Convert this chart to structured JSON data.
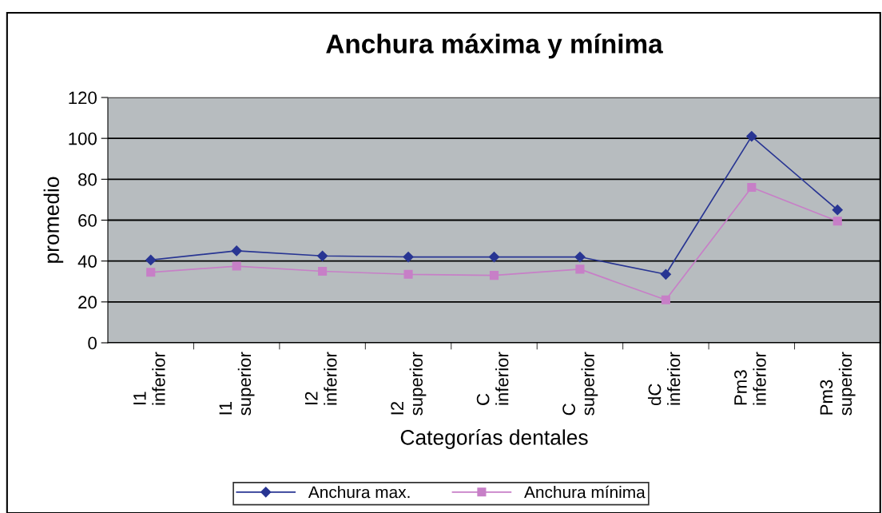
{
  "chart_data": {
    "type": "line",
    "title": "Anchura máxima y mínima",
    "xlabel": "Categorías dentales",
    "ylabel": "promedio",
    "categories": [
      "I1\ninferior",
      "I1\nsuperior",
      "I2\ninferior",
      "I2\nsuperior",
      "C\ninferior",
      "C\nsuperior",
      "dC\ninferior",
      "Pm3\ninferior",
      "Pm3\nsuperior"
    ],
    "series": [
      {
        "name": "Anchura max.",
        "color": "#283593",
        "marker": "diamond",
        "values": [
          40.5,
          45,
          42.5,
          42,
          42,
          42,
          33.5,
          101,
          65
        ]
      },
      {
        "name": "Anchura mínima",
        "color": "#c77fc7",
        "marker": "square",
        "values": [
          34.5,
          37.5,
          35,
          33.5,
          33,
          36,
          21,
          76,
          59.5
        ]
      }
    ],
    "ylim": [
      0,
      120
    ],
    "yticks": [
      0,
      20,
      40,
      60,
      80,
      100,
      120
    ],
    "grid": "y",
    "legend": "bottom"
  }
}
